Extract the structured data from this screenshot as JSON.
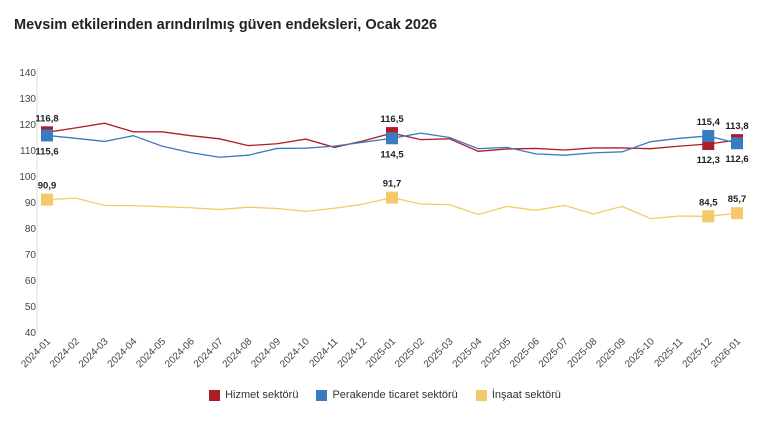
{
  "chart_data": {
    "type": "line",
    "title": "Mevsim etkilerinden arındırılmış güven endeksleri, Ocak 2026",
    "xlabel": "",
    "ylabel": "",
    "ylim": [
      40,
      140
    ],
    "yticks": [
      40,
      50,
      60,
      70,
      80,
      90,
      100,
      110,
      120,
      130,
      140
    ],
    "grid": false,
    "legend": "bottom",
    "categories": [
      "2024-01",
      "2024-02",
      "2024-03",
      "2024-04",
      "2024-05",
      "2024-06",
      "2024-07",
      "2024-08",
      "2024-09",
      "2024-10",
      "2024-11",
      "2024-12",
      "2025-01",
      "2025-02",
      "2025-03",
      "2025-04",
      "2025-05",
      "2025-06",
      "2025-07",
      "2025-08",
      "2025-09",
      "2025-10",
      "2025-11",
      "2025-12",
      "2026-01"
    ],
    "series": [
      {
        "name": "Hizmet sektörü",
        "color": "#b01c24",
        "values": [
          116.8,
          118.5,
          120.3,
          117,
          117,
          115.5,
          114.3,
          111.7,
          112.4,
          114.2,
          111,
          113.5,
          116.5,
          114,
          114.3,
          109.5,
          110.4,
          110.6,
          110,
          110.8,
          110.8,
          110.5,
          111.5,
          112.3,
          113.8
        ],
        "labels": [
          {
            "i": 0,
            "text": "116,8",
            "pos": "above"
          },
          {
            "i": 12,
            "text": "116,5",
            "pos": "above"
          },
          {
            "i": 23,
            "text": "112,3",
            "pos": "below"
          },
          {
            "i": 24,
            "text": "113,8",
            "pos": "above"
          }
        ]
      },
      {
        "name": "Perakende ticaret sektörü",
        "color": "#3a7bbf",
        "values": [
          115.6,
          114.5,
          113.3,
          115.5,
          111.5,
          109,
          107.2,
          108,
          110.6,
          110.7,
          111.5,
          113,
          114.5,
          116.5,
          114.8,
          110.5,
          111,
          108.5,
          108,
          108.9,
          109.3,
          113.2,
          114.5,
          115.4,
          112.6
        ],
        "labels": [
          {
            "i": 0,
            "text": "115,6",
            "pos": "below"
          },
          {
            "i": 12,
            "text": "114,5",
            "pos": "below"
          },
          {
            "i": 23,
            "text": "115,4",
            "pos": "above"
          },
          {
            "i": 24,
            "text": "112,6",
            "pos": "below"
          }
        ]
      },
      {
        "name": "İnşaat sektörü",
        "color": "#f5c96a",
        "values": [
          90.9,
          91.5,
          88.7,
          88.6,
          88.2,
          87.8,
          87.1,
          88,
          87.5,
          86.4,
          87.6,
          89.2,
          91.7,
          89.2,
          89,
          85.2,
          88.3,
          86.8,
          88.7,
          85.4,
          88.3,
          83.6,
          84.6,
          84.5,
          85.7
        ],
        "labels": [
          {
            "i": 0,
            "text": "90,9",
            "pos": "above"
          },
          {
            "i": 12,
            "text": "91,7",
            "pos": "above"
          },
          {
            "i": 23,
            "text": "84,5",
            "pos": "above"
          },
          {
            "i": 24,
            "text": "85,7",
            "pos": "above"
          }
        ]
      }
    ]
  }
}
